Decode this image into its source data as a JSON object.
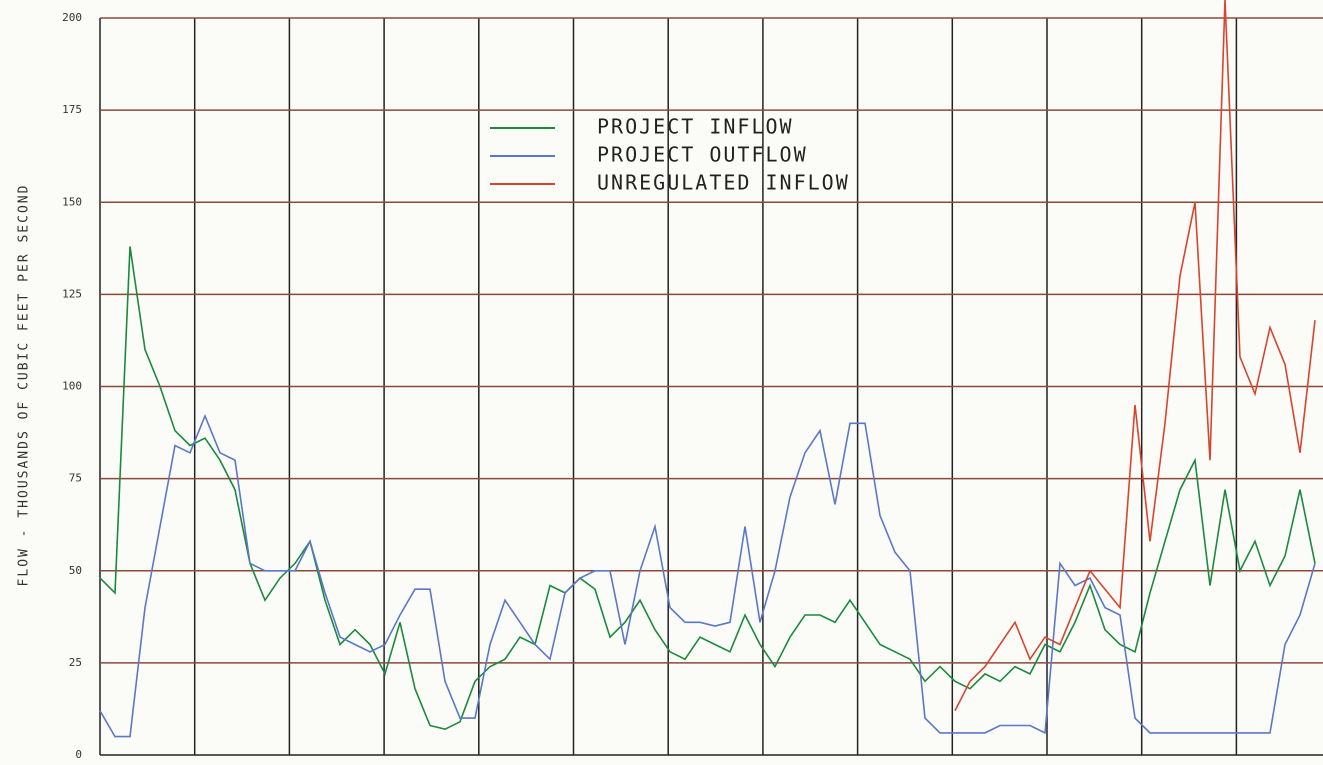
{
  "chart_data": {
    "type": "line",
    "y_label": "FLOW - THOUSANDS OF CUBIC FEET PER SECOND",
    "ylim": [
      0,
      200
    ],
    "yticks": [
      0,
      25,
      50,
      75,
      100,
      125,
      150,
      175,
      200
    ],
    "grid": true,
    "series": [
      {
        "name": "PROJECT INFLOW",
        "color": "#1b8a3c",
        "values": [
          48,
          44,
          138,
          110,
          100,
          88,
          84,
          86,
          80,
          72,
          52,
          42,
          48,
          52,
          58,
          42,
          30,
          34,
          30,
          22,
          36,
          18,
          8,
          7,
          9,
          20,
          24,
          26,
          32,
          30,
          46,
          44,
          48,
          45,
          32,
          36,
          42,
          34,
          28,
          26,
          32,
          30,
          28,
          38,
          30,
          24,
          32,
          38,
          38,
          36,
          42,
          36,
          30,
          28,
          26,
          20,
          24,
          20,
          18,
          22,
          20,
          24,
          22,
          30,
          28,
          36,
          46,
          34,
          30,
          28,
          44,
          58,
          72,
          80,
          46,
          72,
          50,
          58,
          46,
          54,
          72,
          52
        ]
      },
      {
        "name": "PROJECT OUTFLOW",
        "color": "#5a78c8",
        "values": [
          12,
          5,
          5,
          40,
          62,
          84,
          82,
          92,
          82,
          80,
          52,
          50,
          50,
          50,
          58,
          44,
          32,
          30,
          28,
          30,
          38,
          45,
          45,
          20,
          10,
          10,
          30,
          42,
          36,
          30,
          26,
          44,
          48,
          50,
          50,
          30,
          50,
          62,
          40,
          36,
          36,
          35,
          36,
          62,
          36,
          50,
          70,
          82,
          88,
          68,
          90,
          90,
          65,
          55,
          50,
          10,
          6,
          6,
          6,
          6,
          8,
          8,
          8,
          6,
          52,
          46,
          48,
          40,
          38,
          10,
          6,
          6,
          6,
          6,
          6,
          6,
          6,
          6,
          6,
          30,
          38,
          52
        ]
      },
      {
        "name": "UNREGULATED INFLOW",
        "color": "#d8452e",
        "values": [
          null,
          null,
          null,
          null,
          null,
          null,
          null,
          null,
          null,
          null,
          null,
          null,
          null,
          null,
          null,
          null,
          null,
          null,
          null,
          null,
          null,
          null,
          null,
          null,
          null,
          null,
          null,
          null,
          null,
          null,
          null,
          null,
          null,
          null,
          null,
          null,
          null,
          null,
          null,
          null,
          null,
          null,
          null,
          null,
          null,
          null,
          null,
          null,
          null,
          null,
          null,
          null,
          null,
          null,
          null,
          null,
          null,
          12,
          20,
          24,
          30,
          36,
          26,
          32,
          30,
          40,
          50,
          45,
          40,
          95,
          58,
          90,
          130,
          150,
          80,
          205,
          108,
          98,
          116,
          106,
          82,
          118
        ]
      }
    ]
  }
}
